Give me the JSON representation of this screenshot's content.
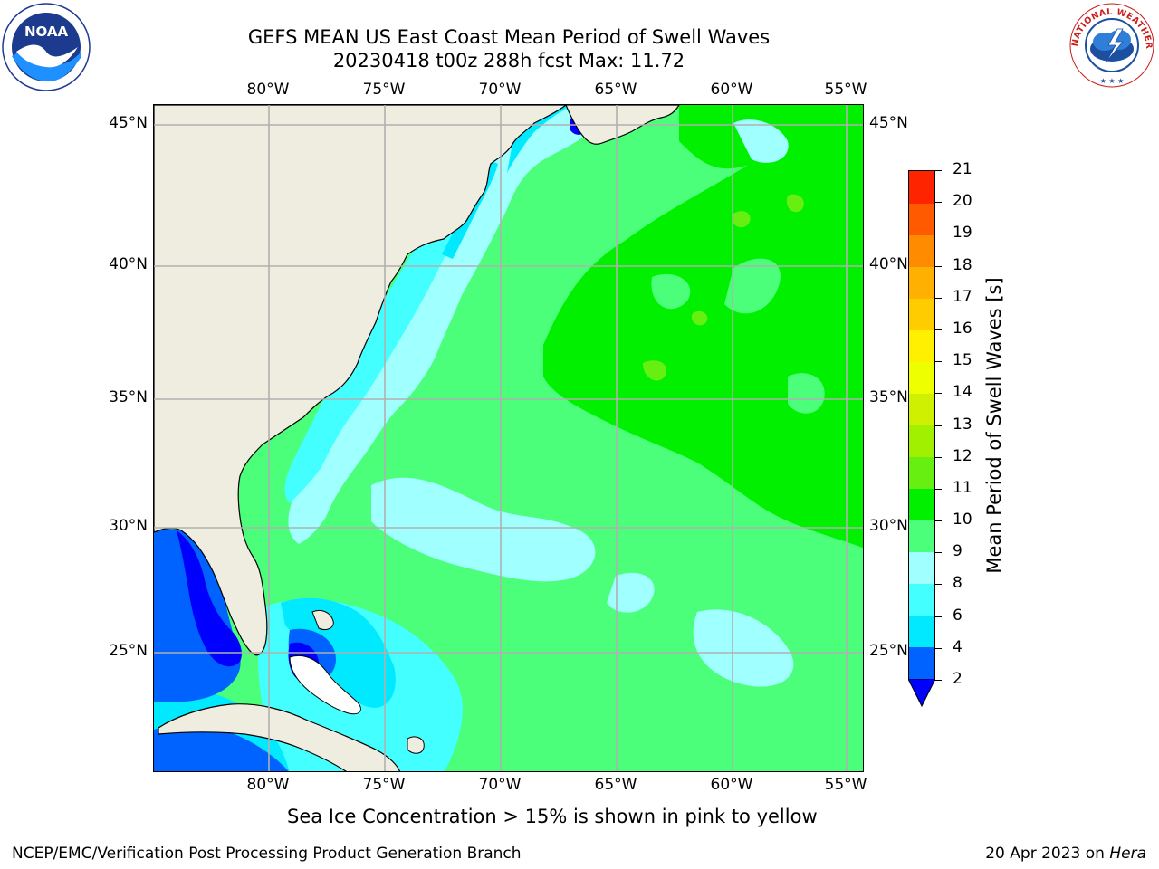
{
  "title": {
    "line1": "GEFS MEAN US East Coast Mean Period of Swell Waves",
    "line2": "20230418 t00z 288h fcst   Max: 11.72"
  },
  "logos": {
    "left_icon": "noaa-logo",
    "left_text": "NOAA",
    "right_icon": "nws-logo",
    "right_text": "NATIONAL WEATHER SERVICE"
  },
  "map": {
    "lon_labels": [
      "80°W",
      "75°W",
      "70°W",
      "65°W",
      "60°W",
      "55°W"
    ],
    "lat_labels": [
      "45°N",
      "40°N",
      "35°N",
      "30°N",
      "25°N"
    ],
    "colors": {
      "land": "#efeddf",
      "band_2_4": "#0063ff",
      "band_4_6": "#00e9ff",
      "band_6_8": "#44ffff",
      "band_8_9": "#a0ffff",
      "band_9_10": "#4cff7a",
      "band_10_11": "#00f000",
      "band_11_12": "#66ef11",
      "below_2": "#0000ff",
      "grid": "#b0b0b0"
    }
  },
  "colorbar": {
    "label": "Mean Period of Swell Waves [s]",
    "ticks": [
      "2",
      "4",
      "6",
      "8",
      "9",
      "10",
      "11",
      "12",
      "13",
      "14",
      "15",
      "16",
      "17",
      "18",
      "19",
      "20",
      "21"
    ],
    "colors": [
      "#0063ff",
      "#00e9ff",
      "#44ffff",
      "#a0ffff",
      "#4cff7a",
      "#00f000",
      "#66ef11",
      "#a0f000",
      "#cff000",
      "#eeff00",
      "#ffef00",
      "#ffcc00",
      "#ffb000",
      "#ff8c00",
      "#ff5a00",
      "#ff2400"
    ],
    "under_color": "#0000ff"
  },
  "note": "Sea Ice Concentration > 15% is shown in pink to yellow",
  "footer": {
    "left": "NCEP/EMC/Verification Post Processing Product Generation Branch",
    "right_prefix": "20 Apr 2023 on ",
    "right_host": "Hera"
  }
}
